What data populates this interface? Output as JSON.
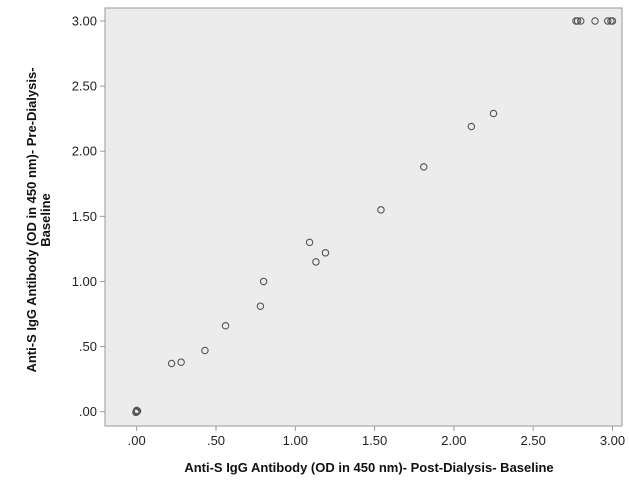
{
  "chart_data": {
    "type": "scatter",
    "title": "",
    "xlabel": "Anti-S IgG Antibody (OD in 450 nm)- Post-Dialysis- Baseline",
    "ylabel_lines": [
      "Anti-S IgG Antibody (OD in 450 nm)- Pre-Dialysis-",
      "Baseline"
    ],
    "xlim": [
      -0.2,
      3.06
    ],
    "ylim": [
      -0.11,
      3.1
    ],
    "x_ticks": [
      0,
      0.5,
      1,
      1.5,
      2,
      2.5,
      3
    ],
    "x_tick_labels": [
      ".00",
      ".50",
      "1.00",
      "1.50",
      "2.00",
      "2.50",
      "3.00"
    ],
    "y_ticks": [
      0,
      0.5,
      1,
      1.5,
      2,
      2.5,
      3
    ],
    "y_tick_labels": [
      ".00",
      ".50",
      "1.00",
      "1.50",
      "2.00",
      "2.50",
      "3.00"
    ],
    "grid": false,
    "colors": {
      "plot_background": "#ececec",
      "axis": "#9a9a9a",
      "marker": "#555555"
    },
    "points": [
      {
        "x": 0.0,
        "y": 0.0
      },
      {
        "x": 0.005,
        "y": 0.005
      },
      {
        "x": -0.005,
        "y": -0.005
      },
      {
        "x": 0.0,
        "y": 0.01
      },
      {
        "x": 0.22,
        "y": 0.37
      },
      {
        "x": 0.28,
        "y": 0.38
      },
      {
        "x": 0.43,
        "y": 0.47
      },
      {
        "x": 0.56,
        "y": 0.66
      },
      {
        "x": 0.78,
        "y": 0.81
      },
      {
        "x": 0.8,
        "y": 1.0
      },
      {
        "x": 1.09,
        "y": 1.3
      },
      {
        "x": 1.13,
        "y": 1.15
      },
      {
        "x": 1.19,
        "y": 1.22
      },
      {
        "x": 1.54,
        "y": 1.55
      },
      {
        "x": 1.81,
        "y": 1.88
      },
      {
        "x": 2.11,
        "y": 2.19
      },
      {
        "x": 2.25,
        "y": 2.29
      },
      {
        "x": 2.77,
        "y": 3.0
      },
      {
        "x": 2.78,
        "y": 3.0
      },
      {
        "x": 2.8,
        "y": 3.0
      },
      {
        "x": 2.89,
        "y": 3.0
      },
      {
        "x": 2.97,
        "y": 3.0
      },
      {
        "x": 2.99,
        "y": 3.0
      },
      {
        "x": 3.0,
        "y": 3.0
      }
    ]
  }
}
